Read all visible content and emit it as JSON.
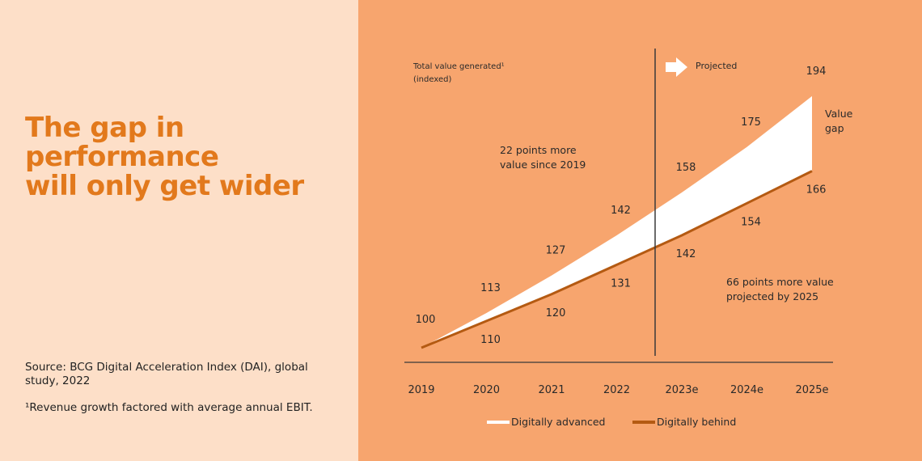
{
  "headline": [
    "The gap in",
    "performance",
    "will only get wider"
  ],
  "source": "Source: BCG Digital Acceleration Index (DAI), global study, 2022",
  "footnote": "¹Revenue growth factored with average annual EBIT.",
  "colors": {
    "left_bg": "#FDDFC8",
    "right_bg": "#F7A56E",
    "headline": "#E2791C",
    "advanced": "#FFFFFF",
    "behind": "#B45A12"
  },
  "chart_data": {
    "type": "line",
    "ylabel": [
      "Total value generated¹",
      "(indexed)"
    ],
    "projected_label": "Projected",
    "categories": [
      "2019",
      "2020",
      "2021",
      "2022",
      "2023e",
      "2024e",
      "2025e"
    ],
    "series": [
      {
        "name": "Digitally advanced",
        "values": [
          100,
          113,
          127,
          142,
          158,
          175,
          194
        ]
      },
      {
        "name": "Digitally behind",
        "values": [
          100,
          110,
          120,
          131,
          142,
          154,
          166
        ]
      }
    ],
    "annotations": {
      "gap_label": [
        "Value",
        "gap"
      ],
      "historic_note": [
        "22 points more",
        "value since 2019"
      ],
      "projected_note": [
        "66 points more value",
        "projected by 2025"
      ]
    }
  }
}
